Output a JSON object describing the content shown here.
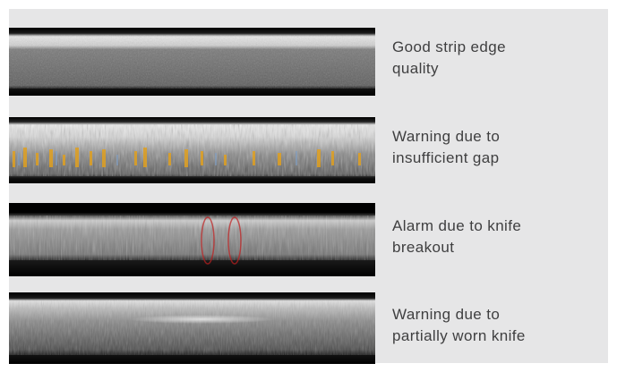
{
  "rows": [
    {
      "caption_line1": "Good strip edge",
      "caption_line2": "quality"
    },
    {
      "caption_line1": "Warning due to",
      "caption_line2": "insufficient gap"
    },
    {
      "caption_line1": "Alarm due to knife",
      "caption_line2": "breakout"
    },
    {
      "caption_line1": "Warning due to",
      "caption_line2": "partially worn knife"
    }
  ],
  "colors": {
    "panel_background": "#e6e6e7",
    "caption_text": "#3f3f40",
    "gap_highlight": "#e0a020",
    "breakout_highlight": "#c02020"
  },
  "icons": {
    "row1": "strip-edge-good-image",
    "row2": "strip-edge-gap-warning-image",
    "row3": "strip-edge-knife-breakout-image",
    "row4": "strip-edge-worn-knife-image"
  }
}
